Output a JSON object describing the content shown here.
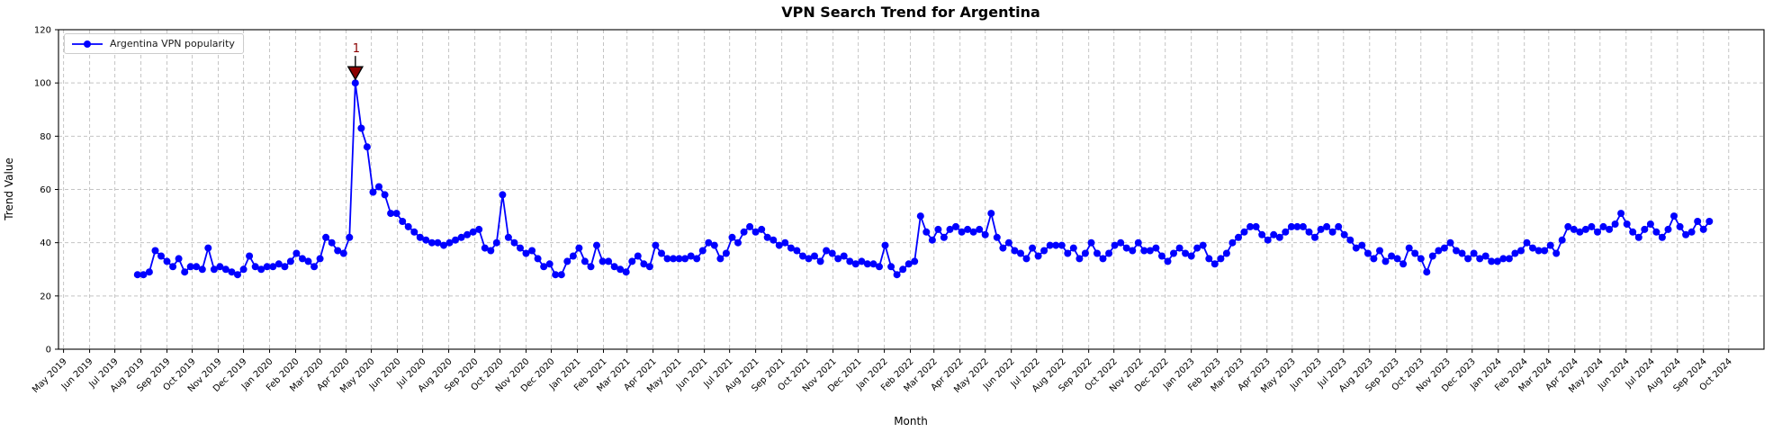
{
  "figure": {
    "background": "#ffffff"
  },
  "chart_data": {
    "type": "line",
    "title": "VPN Search Trend for Argentina",
    "xlabel": "Month",
    "ylabel": "Trend Value",
    "ylim": [
      0,
      120
    ],
    "yticks": [
      0,
      20,
      40,
      60,
      80,
      100,
      120
    ],
    "grid": true,
    "legend": {
      "position": "upper-left",
      "entries": [
        "Argentina VPN popularity"
      ]
    },
    "x_tick_labels": [
      "May 2019",
      "Jun 2019",
      "Jul 2019",
      "Aug 2019",
      "Sep 2019",
      "Oct 2019",
      "Nov 2019",
      "Dec 2019",
      "Jan 2020",
      "Feb 2020",
      "Mar 2020",
      "Apr 2020",
      "May 2020",
      "Jun 2020",
      "Jul 2020",
      "Aug 2020",
      "Sep 2020",
      "Oct 2020",
      "Nov 2020",
      "Dec 2020",
      "Jan 2021",
      "Feb 2021",
      "Mar 2021",
      "Apr 2021",
      "May 2021",
      "Jun 2021",
      "Jul 2021",
      "Aug 2021",
      "Sep 2021",
      "Oct 2021",
      "Nov 2021",
      "Dec 2021",
      "Jan 2022",
      "Feb 2022",
      "Mar 2022",
      "Apr 2022",
      "May 2022",
      "Jun 2022",
      "Jul 2022",
      "Aug 2022",
      "Sep 2022",
      "Oct 2022",
      "Nov 2022",
      "Dec 2022",
      "Jan 2023",
      "Feb 2023",
      "Mar 2023",
      "Apr 2023",
      "May 2023",
      "Jun 2023",
      "Jul 2023",
      "Aug 2023",
      "Sep 2023",
      "Oct 2023",
      "Nov 2023",
      "Dec 2023",
      "Jan 2024",
      "Feb 2024",
      "Mar 2024",
      "Apr 2024",
      "May 2024",
      "Jun 2024",
      "Jul 2024",
      "Aug 2024",
      "Sep 2024",
      "Oct 2024"
    ],
    "series": [
      {
        "name": "Argentina VPN popularity",
        "color": "#0000ff",
        "marker": "circle",
        "start_date": "2019-07-28",
        "interval_days": 7,
        "values": [
          28,
          28,
          29,
          37,
          35,
          33,
          31,
          34,
          29,
          31,
          31,
          30,
          38,
          30,
          31,
          30,
          29,
          28,
          30,
          35,
          31,
          30,
          31,
          31,
          32,
          31,
          33,
          36,
          34,
          33,
          31,
          34,
          42,
          40,
          37,
          36,
          42,
          100,
          83,
          76,
          59,
          61,
          58,
          51,
          51,
          48,
          46,
          44,
          42,
          41,
          40,
          40,
          39,
          40,
          41,
          42,
          43,
          44,
          45,
          38,
          37,
          40,
          58,
          42,
          40,
          38,
          36,
          37,
          34,
          31,
          32,
          28,
          28,
          33,
          35,
          38,
          33,
          31,
          39,
          33,
          33,
          31,
          30,
          29,
          33,
          35,
          32,
          31,
          39,
          36,
          34,
          34,
          34,
          34,
          35,
          34,
          37,
          40,
          39,
          34,
          36,
          42,
          40,
          44,
          46,
          44,
          45,
          42,
          41,
          39,
          40,
          38,
          37,
          35,
          34,
          35,
          33,
          37,
          36,
          34,
          35,
          33,
          32,
          33,
          32,
          32,
          31,
          39,
          31,
          28,
          30,
          32,
          33,
          50,
          44,
          41,
          45,
          42,
          45,
          46,
          44,
          45,
          44,
          45,
          43,
          51,
          42,
          38,
          40,
          37,
          36,
          34,
          38,
          35,
          37,
          39,
          39,
          39,
          36,
          38,
          34,
          36,
          40,
          36,
          34,
          36,
          39,
          40,
          38,
          37,
          40,
          37,
          37,
          38,
          35,
          33,
          36,
          38,
          36,
          35,
          38,
          39,
          34,
          32,
          34,
          36,
          40,
          42,
          44,
          46,
          46,
          43,
          41,
          43,
          42,
          44,
          46,
          46,
          46,
          44,
          42,
          45,
          46,
          44,
          46,
          43,
          41,
          38,
          39,
          36,
          34,
          37,
          33,
          35,
          34,
          32,
          38,
          36,
          34,
          29,
          35,
          37,
          38,
          40,
          37,
          36,
          34,
          36,
          34,
          35,
          33,
          33,
          34,
          34,
          36,
          37,
          40,
          38,
          37,
          37,
          39,
          36,
          41,
          46,
          45,
          44,
          45,
          46,
          44,
          46,
          45,
          47,
          51,
          47,
          44,
          42,
          45,
          47,
          44,
          42,
          45,
          50,
          46,
          43,
          44,
          48,
          45,
          48
        ]
      }
    ],
    "annotation": {
      "label": "1",
      "point_index": 37,
      "point_value": 100,
      "color": "#8b0000",
      "marker": "triangle-down"
    }
  }
}
